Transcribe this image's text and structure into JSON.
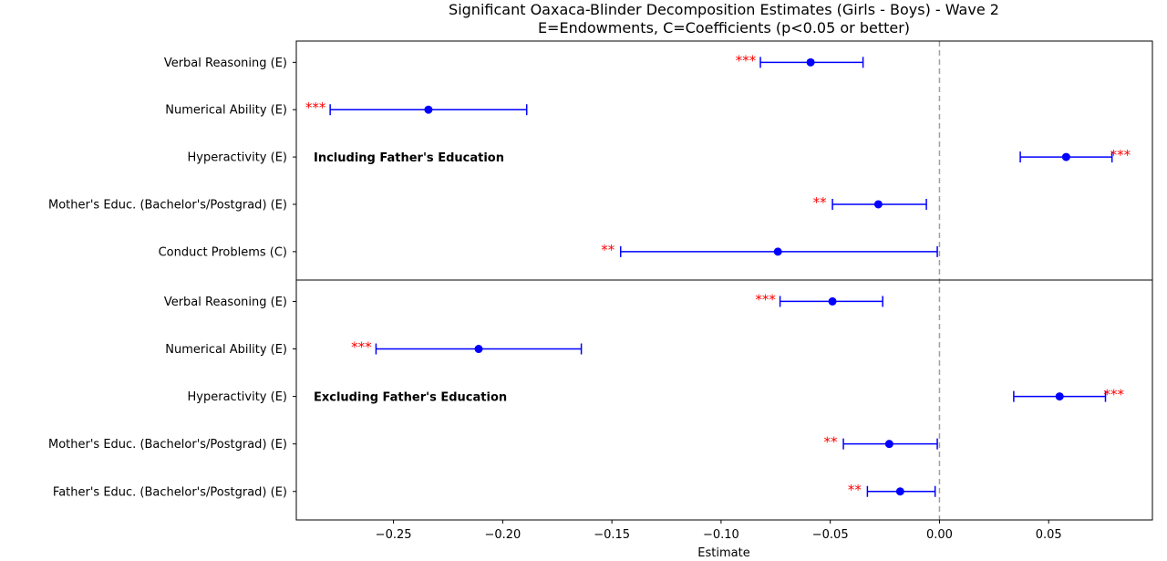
{
  "chart_data": {
    "type": "scatter",
    "title": "Significant Oaxaca-Blinder Decomposition Estimates (Girls - Boys) - Wave 2",
    "subtitle": "E=Endowments, C=Coefficients (p<0.05 or better)",
    "xlabel": "Estimate",
    "xlim": [
      -0.2945,
      0.0975
    ],
    "xticks": [
      -0.25,
      -0.2,
      -0.15,
      -0.1,
      -0.05,
      0.0,
      0.05
    ],
    "xtick_labels": [
      "−0.25",
      "−0.20",
      "−0.15",
      "−0.10",
      "−0.05",
      "0.00",
      "0.05"
    ],
    "reference_line": 0.0,
    "grid": false,
    "colors": {
      "point": "#0000ff",
      "significance": "#ff0000",
      "reference_line": "#a0a0a0"
    },
    "panels": [
      {
        "label": "Including Father's Education",
        "rows": [
          {
            "label": "Verbal Reasoning (E)",
            "estimate": -0.059,
            "ci_low": -0.082,
            "ci_high": -0.035,
            "sig": "***"
          },
          {
            "label": "Numerical Ability (E)",
            "estimate": -0.234,
            "ci_low": -0.279,
            "ci_high": -0.189,
            "sig": "***"
          },
          {
            "label": "Hyperactivity (E)",
            "estimate": 0.058,
            "ci_low": 0.037,
            "ci_high": 0.079,
            "sig": "***"
          },
          {
            "label": "Mother's Educ. (Bachelor's/Postgrad) (E)",
            "estimate": -0.028,
            "ci_low": -0.049,
            "ci_high": -0.006,
            "sig": "**"
          },
          {
            "label": "Conduct Problems (C)",
            "estimate": -0.074,
            "ci_low": -0.146,
            "ci_high": -0.001,
            "sig": "**"
          }
        ]
      },
      {
        "label": "Excluding Father's Education",
        "rows": [
          {
            "label": "Verbal Reasoning (E)",
            "estimate": -0.049,
            "ci_low": -0.073,
            "ci_high": -0.026,
            "sig": "***"
          },
          {
            "label": "Numerical Ability (E)",
            "estimate": -0.211,
            "ci_low": -0.258,
            "ci_high": -0.164,
            "sig": "***"
          },
          {
            "label": "Hyperactivity (E)",
            "estimate": 0.055,
            "ci_low": 0.034,
            "ci_high": 0.076,
            "sig": "***"
          },
          {
            "label": "Mother's Educ. (Bachelor's/Postgrad) (E)",
            "estimate": -0.023,
            "ci_low": -0.044,
            "ci_high": -0.001,
            "sig": "**"
          },
          {
            "label": "Father's Educ. (Bachelor's/Postgrad) (E)",
            "estimate": -0.018,
            "ci_low": -0.033,
            "ci_high": -0.002,
            "sig": "**"
          }
        ]
      }
    ]
  }
}
